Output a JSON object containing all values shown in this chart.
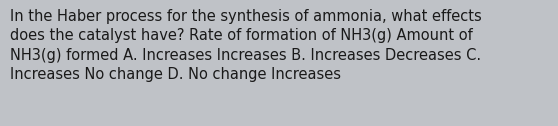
{
  "text": "In the Haber process for the synthesis of ammonia, what effects\ndoes the catalyst have? Rate of formation of NH3(g) Amount of\nNH3(g) formed A. Increases Increases B. Increases Decreases C.\nIncreases No change D. No change Increases",
  "background_color": "#bfc2c7",
  "text_color": "#1a1a1a",
  "font_size": 10.5,
  "fig_width": 5.58,
  "fig_height": 1.26,
  "dpi": 100
}
